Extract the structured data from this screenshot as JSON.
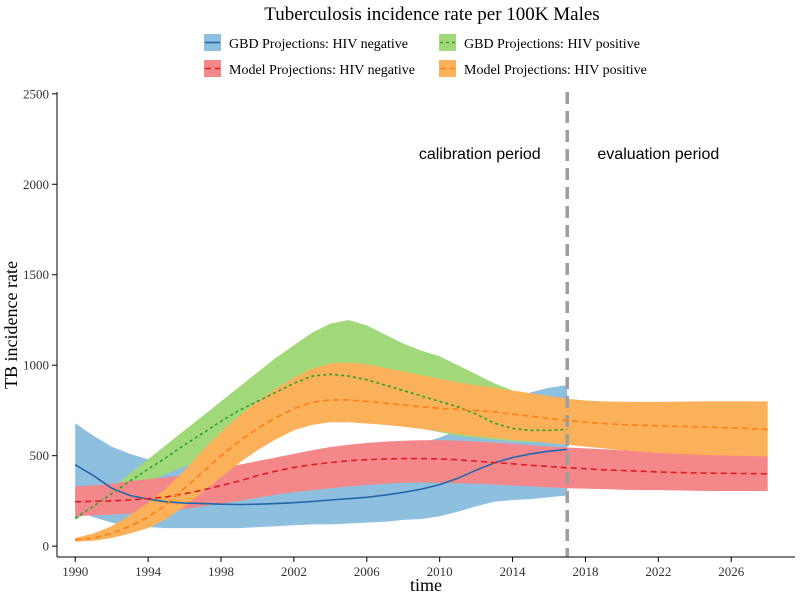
{
  "chart_data": {
    "type": "area",
    "title": "Tuberculosis incidence rate per 100K Males",
    "xlabel": "time",
    "ylabel": "TB incidence rate",
    "xlim": [
      1989,
      2029.5
    ],
    "ylim": [
      -60,
      2510
    ],
    "x_ticks": [
      1990,
      1994,
      1998,
      2002,
      2006,
      2010,
      2014,
      2018,
      2022,
      2026
    ],
    "y_ticks": [
      0,
      500,
      1000,
      1500,
      2000,
      2500
    ],
    "grid": false,
    "legend_position": "top",
    "divider_year": 2017,
    "annotations": [
      {
        "label": "calibration period",
        "x": 2012.2,
        "y": 2140
      },
      {
        "label": "evaluation period",
        "x": 2022.0,
        "y": 2140
      }
    ],
    "series": [
      {
        "name": "GBD Projections: HIV negative",
        "line_color": "#2166ac",
        "fill_color": "#8fbfde",
        "line_style": "solid",
        "x": [
          1990,
          1991,
          1992,
          1993,
          1994,
          1995,
          1996,
          1997,
          1998,
          1999,
          2000,
          2001,
          2002,
          2003,
          2004,
          2005,
          2006,
          2007,
          2008,
          2009,
          2010,
          2011,
          2012,
          2013,
          2014,
          2015,
          2016,
          2017
        ],
        "y": [
          450,
          390,
          320,
          280,
          260,
          245,
          238,
          235,
          232,
          230,
          232,
          235,
          240,
          247,
          255,
          262,
          270,
          282,
          297,
          315,
          340,
          375,
          420,
          460,
          490,
          510,
          525,
          535
        ],
        "lower": [
          200,
          160,
          130,
          110,
          105,
          100,
          100,
          100,
          100,
          100,
          105,
          110,
          115,
          120,
          120,
          125,
          130,
          135,
          145,
          150,
          165,
          190,
          220,
          245,
          255,
          260,
          270,
          280
        ],
        "upper": [
          680,
          610,
          550,
          510,
          480,
          460,
          450,
          440,
          435,
          430,
          430,
          435,
          440,
          450,
          460,
          475,
          495,
          515,
          540,
          570,
          600,
          640,
          700,
          770,
          820,
          850,
          875,
          890
        ]
      },
      {
        "name": "GBD Projections: HIV positive",
        "line_color": "#2ca02c",
        "fill_color": "#a1d97a",
        "line_style": "dotted",
        "x": [
          1990,
          1991,
          1992,
          1993,
          1994,
          1995,
          1996,
          1997,
          1998,
          1999,
          2000,
          2001,
          2002,
          2003,
          2004,
          2005,
          2006,
          2007,
          2008,
          2009,
          2010,
          2011,
          2012,
          2013,
          2014,
          2015,
          2016,
          2017
        ],
        "y": [
          155,
          220,
          290,
          360,
          425,
          490,
          560,
          625,
          690,
          750,
          800,
          850,
          900,
          940,
          950,
          940,
          920,
          890,
          860,
          830,
          800,
          770,
          730,
          680,
          650,
          640,
          640,
          645
        ],
        "lower": [
          145,
          200,
          255,
          310,
          355,
          400,
          440,
          480,
          520,
          560,
          600,
          640,
          670,
          690,
          700,
          700,
          690,
          680,
          665,
          650,
          630,
          610,
          600,
          590,
          580,
          575,
          575,
          580
        ],
        "upper": [
          170,
          245,
          320,
          400,
          480,
          560,
          640,
          720,
          800,
          880,
          960,
          1040,
          1110,
          1180,
          1230,
          1250,
          1220,
          1170,
          1120,
          1080,
          1050,
          1000,
          950,
          900,
          860,
          830,
          810,
          800
        ]
      },
      {
        "name": "Model Projections: HIV negative",
        "line_color": "#e31a1c",
        "fill_color": "#f4878a",
        "line_style": "dashed",
        "x": [
          1990,
          1991,
          1992,
          1993,
          1994,
          1995,
          1996,
          1997,
          1998,
          1999,
          2000,
          2001,
          2002,
          2003,
          2004,
          2005,
          2006,
          2007,
          2008,
          2009,
          2010,
          2011,
          2012,
          2013,
          2014,
          2015,
          2016,
          2017,
          2018,
          2019,
          2020,
          2021,
          2022,
          2023,
          2024,
          2025,
          2026,
          2027,
          2028
        ],
        "y": [
          245,
          248,
          250,
          255,
          262,
          272,
          290,
          310,
          335,
          360,
          390,
          415,
          435,
          450,
          462,
          472,
          478,
          482,
          484,
          484,
          482,
          477,
          470,
          462,
          455,
          447,
          440,
          433,
          428,
          422,
          418,
          414,
          410,
          407,
          405,
          403,
          402,
          401,
          400
        ],
        "lower": [
          165,
          170,
          175,
          180,
          185,
          190,
          205,
          220,
          235,
          250,
          268,
          285,
          298,
          310,
          320,
          330,
          338,
          345,
          350,
          352,
          350,
          348,
          345,
          340,
          335,
          330,
          325,
          320,
          318,
          315,
          312,
          310,
          310,
          308,
          306,
          305,
          305,
          305,
          305
        ],
        "upper": [
          330,
          335,
          345,
          360,
          370,
          380,
          395,
          410,
          430,
          450,
          470,
          490,
          510,
          530,
          548,
          560,
          570,
          578,
          583,
          585,
          585,
          582,
          578,
          572,
          565,
          558,
          550,
          545,
          540,
          535,
          530,
          525,
          520,
          515,
          512,
          508,
          505,
          502,
          500
        ]
      },
      {
        "name": "Model Projections: HIV positive",
        "line_color": "#ff7f0e",
        "fill_color": "#fbb05a",
        "line_style": "dashed",
        "x": [
          1990,
          1991,
          1992,
          1993,
          1994,
          1995,
          1996,
          1997,
          1998,
          1999,
          2000,
          2001,
          2002,
          2003,
          2004,
          2005,
          2006,
          2007,
          2008,
          2009,
          2010,
          2011,
          2012,
          2013,
          2014,
          2015,
          2016,
          2017,
          2018,
          2019,
          2020,
          2021,
          2022,
          2023,
          2024,
          2025,
          2026,
          2027,
          2028
        ],
        "y": [
          35,
          45,
          70,
          110,
          160,
          230,
          320,
          410,
          500,
          580,
          650,
          710,
          760,
          795,
          808,
          808,
          800,
          790,
          780,
          770,
          762,
          755,
          750,
          742,
          730,
          718,
          705,
          695,
          685,
          678,
          672,
          668,
          665,
          662,
          660,
          657,
          654,
          650,
          645
        ],
        "lower": [
          25,
          30,
          45,
          70,
          100,
          150,
          220,
          300,
          380,
          460,
          530,
          590,
          640,
          670,
          685,
          685,
          678,
          670,
          660,
          648,
          635,
          620,
          608,
          598,
          588,
          580,
          570,
          560,
          550,
          540,
          530,
          522,
          515,
          510,
          505,
          502,
          500,
          498,
          495
        ],
        "upper": [
          45,
          70,
          110,
          170,
          240,
          320,
          420,
          530,
          630,
          720,
          800,
          870,
          930,
          980,
          1010,
          1015,
          1005,
          985,
          965,
          945,
          925,
          905,
          890,
          875,
          860,
          845,
          830,
          815,
          805,
          800,
          798,
          797,
          797,
          798,
          800,
          800,
          800,
          800,
          800
        ]
      }
    ]
  }
}
